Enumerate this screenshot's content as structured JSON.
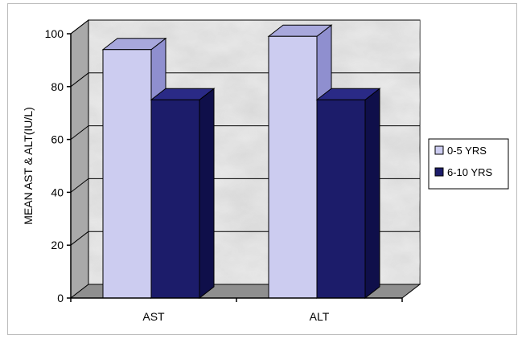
{
  "chart_data": {
    "type": "bar",
    "categories": [
      "AST",
      "ALT"
    ],
    "series": [
      {
        "name": "0-5 YRS",
        "values": [
          94,
          99
        ],
        "color": "#ccccf0"
      },
      {
        "name": "6-10 YRS",
        "values": [
          75,
          75
        ],
        "color": "#1c1c6a"
      }
    ],
    "ylabel": "MEAN AST & ALT(IU/L)",
    "xlabel": "",
    "title": "",
    "ylim": [
      0,
      100
    ],
    "yticks": [
      0,
      20,
      40,
      60,
      80,
      100
    ],
    "three_d": true,
    "grid": true,
    "legend_position": "right",
    "wall_color": "#d9d9d9",
    "floor_color": "#8f8f8f"
  }
}
